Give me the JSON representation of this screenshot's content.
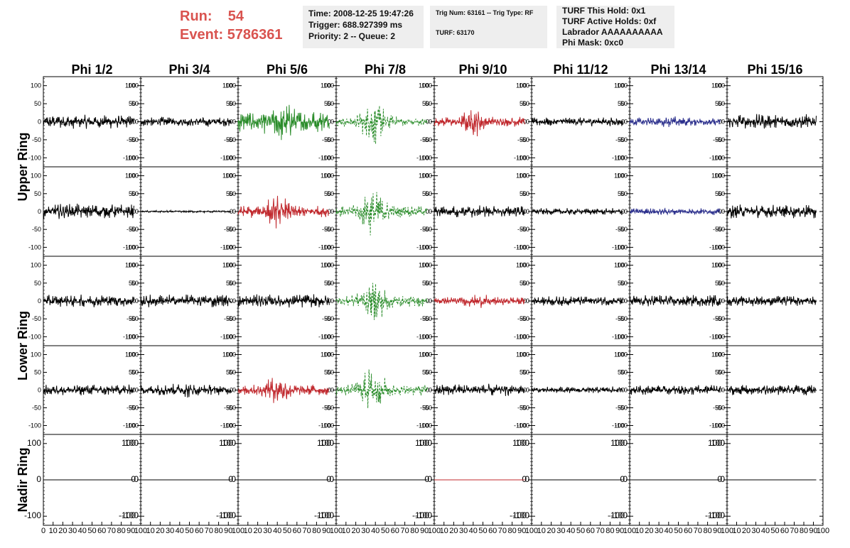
{
  "header": {
    "run_label": "Run:",
    "run_value": "54",
    "event_label": "Event:",
    "event_value": "5786361",
    "time_box": [
      "Time: 2008-12-25 19:47:26",
      "Trigger: 688.927399 ms",
      "Priority: 2 -- Queue: 2"
    ],
    "trig_box": [
      "Trig Num: 63161 -- Trig Type: RF",
      "TURF: 63170"
    ],
    "turf_box": [
      "TURF This Hold: 0x1",
      "TURF Active Holds: 0xf",
      "Labrador AAAAAAAAAA",
      "Phi Mask: 0xc0"
    ]
  },
  "chart_data": {
    "type": "line",
    "columns": [
      "Phi 1/2",
      "Phi 3/4",
      "Phi 5/6",
      "Phi 7/8",
      "Phi 9/10",
      "Phi 11/12",
      "Phi 13/14",
      "Phi 15/16"
    ],
    "row_labels": [
      "Upper Ring",
      "",
      "Lower Ring",
      "",
      "Nadir Ring"
    ],
    "ylim": [
      -125,
      125
    ],
    "xlim": [
      0,
      100
    ],
    "yticks": [
      -100,
      -50,
      0,
      50,
      100
    ],
    "yticks_nadir": [
      -100,
      0,
      100
    ],
    "xtick_labels": [
      "0",
      "10",
      "20",
      "30",
      "40",
      "50",
      "60",
      "70",
      "80",
      "90",
      "100"
    ],
    "colors": {
      "black": "#000000",
      "green": "#2a8c2a",
      "red": "#c0282d",
      "blue": "#2b2f8c"
    },
    "panels": [
      [
        {
          "color": "black",
          "amp": 20,
          "dashed": false,
          "burst": 0,
          "center": 45
        },
        {
          "color": "black",
          "amp": 14,
          "dashed": false,
          "burst": 0,
          "center": 45
        },
        {
          "color": "green",
          "amp": 32,
          "dashed": false,
          "burst": 0.8,
          "center": 45
        },
        {
          "color": "green",
          "amp": 14,
          "dashed": true,
          "burst": 3.8,
          "center": 38
        },
        {
          "color": "red",
          "amp": 14,
          "dashed": false,
          "burst": 2.2,
          "center": 40
        },
        {
          "color": "black",
          "amp": 13,
          "dashed": false,
          "burst": 0,
          "center": 45
        },
        {
          "color": "blue",
          "amp": 12,
          "dashed": false,
          "burst": 0.4,
          "center": 45
        },
        {
          "color": "black",
          "amp": 22,
          "dashed": false,
          "burst": 0,
          "center": 45
        }
      ],
      [
        {
          "color": "black",
          "amp": 22,
          "dashed": false,
          "burst": 0,
          "center": 45
        },
        {
          "color": "black",
          "amp": 3,
          "dashed": false,
          "burst": 0,
          "center": 45
        },
        {
          "color": "red",
          "amp": 18,
          "dashed": false,
          "burst": 1.8,
          "center": 40
        },
        {
          "color": "green",
          "amp": 16,
          "dashed": true,
          "burst": 3.5,
          "center": 38
        },
        {
          "color": "black",
          "amp": 18,
          "dashed": false,
          "burst": 0,
          "center": 45
        },
        {
          "color": "black",
          "amp": 10,
          "dashed": false,
          "burst": 0,
          "center": 45
        },
        {
          "color": "blue",
          "amp": 10,
          "dashed": false,
          "burst": 0,
          "center": 45
        },
        {
          "color": "black",
          "amp": 20,
          "dashed": false,
          "burst": 0,
          "center": 45
        }
      ],
      [
        {
          "color": "black",
          "amp": 18,
          "dashed": false,
          "burst": 0,
          "center": 45
        },
        {
          "color": "black",
          "amp": 19,
          "dashed": false,
          "burst": 0,
          "center": 45
        },
        {
          "color": "black",
          "amp": 20,
          "dashed": false,
          "burst": 0,
          "center": 45
        },
        {
          "color": "green",
          "amp": 16,
          "dashed": true,
          "burst": 3.4,
          "center": 38
        },
        {
          "color": "red",
          "amp": 12,
          "dashed": false,
          "burst": 0.8,
          "center": 45
        },
        {
          "color": "black",
          "amp": 14,
          "dashed": false,
          "burst": 0,
          "center": 45
        },
        {
          "color": "black",
          "amp": 18,
          "dashed": false,
          "burst": 0,
          "center": 45
        },
        {
          "color": "black",
          "amp": 15,
          "dashed": false,
          "burst": 0,
          "center": 45
        }
      ],
      [
        {
          "color": "black",
          "amp": 16,
          "dashed": false,
          "burst": 0,
          "center": 45
        },
        {
          "color": "black",
          "amp": 16,
          "dashed": false,
          "burst": 0.5,
          "center": 45
        },
        {
          "color": "red",
          "amp": 16,
          "dashed": false,
          "burst": 1.6,
          "center": 40
        },
        {
          "color": "green",
          "amp": 16,
          "dashed": true,
          "burst": 3.8,
          "center": 38
        },
        {
          "color": "black",
          "amp": 18,
          "dashed": false,
          "burst": 0,
          "center": 45
        },
        {
          "color": "black",
          "amp": 10,
          "dashed": false,
          "burst": 0,
          "center": 45
        },
        {
          "color": "black",
          "amp": 15,
          "dashed": false,
          "burst": 0,
          "center": 45
        },
        {
          "color": "black",
          "amp": 15,
          "dashed": false,
          "burst": 0,
          "center": 45
        }
      ],
      [
        {
          "color": "black",
          "amp": 0,
          "dashed": false,
          "burst": 0,
          "center": 45
        },
        {
          "color": "black",
          "amp": 0,
          "dashed": false,
          "burst": 0,
          "center": 45
        },
        {
          "color": "black",
          "amp": 0,
          "dashed": false,
          "burst": 0,
          "center": 45
        },
        {
          "color": "black",
          "amp": 0,
          "dashed": false,
          "burst": 0,
          "center": 45
        },
        {
          "color": "red",
          "amp": 0,
          "dashed": false,
          "burst": 0,
          "center": 45
        },
        {
          "color": "black",
          "amp": 0,
          "dashed": false,
          "burst": 0,
          "center": 45
        },
        {
          "color": "black",
          "amp": 0,
          "dashed": false,
          "burst": 0,
          "center": 45
        },
        {
          "color": "black",
          "amp": 0,
          "dashed": false,
          "burst": 0,
          "center": 45
        }
      ]
    ]
  }
}
